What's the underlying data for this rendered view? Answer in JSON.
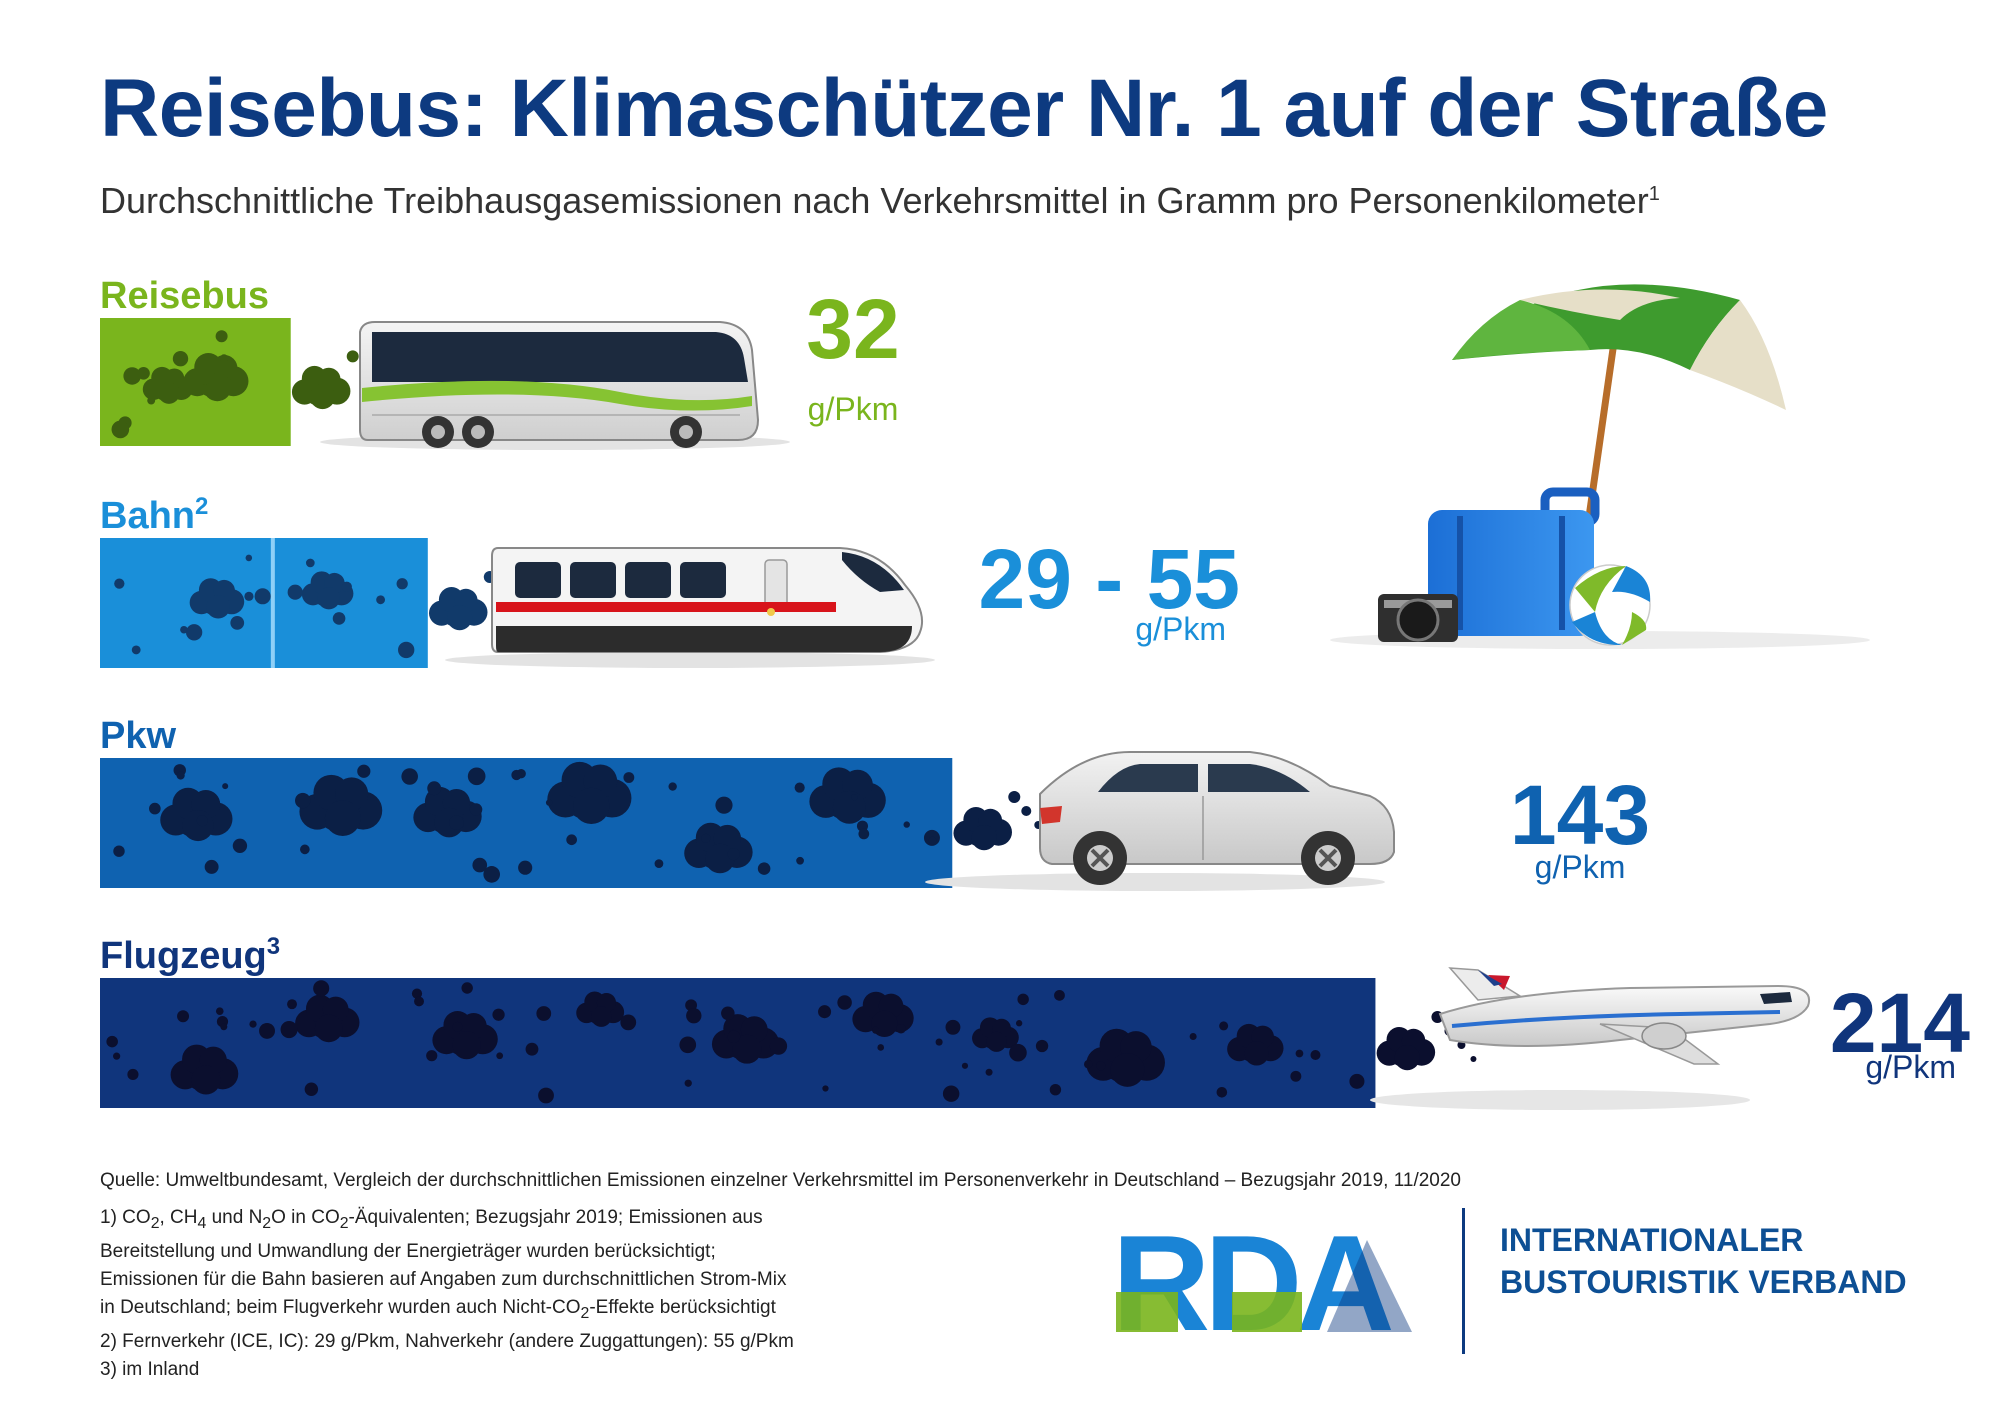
{
  "title": "Reisebus: Klimaschützer Nr. 1 auf der Straße",
  "subtitle": "Durchschnittliche Treibhausgasemissionen nach Verkehrsmittel in Gramm pro Personenkilometer",
  "subtitle_sup": "1",
  "chart_data": {
    "type": "bar",
    "orientation": "horizontal",
    "title": "Reisebus: Klimaschützer Nr. 1 auf der Straße",
    "subtitle": "Durchschnittliche Treibhausgasemissionen nach Verkehrsmittel in Gramm pro Personenkilometer",
    "unit": "g/Pkm",
    "categories": [
      "Reisebus",
      "Bahn",
      "Pkw",
      "Flugzeug"
    ],
    "category_footnotes": [
      "",
      "2",
      "",
      "3"
    ],
    "values": [
      32,
      [
        29,
        55
      ],
      143,
      214
    ],
    "value_labels": [
      "32",
      "29 - 55",
      "143",
      "214"
    ],
    "colors": [
      "#7ab51d",
      "#1a8fd9",
      "#0f62b0",
      "#10357c"
    ],
    "icons": [
      "coach-bus-icon",
      "high-speed-train-icon",
      "car-icon",
      "airplane-icon"
    ]
  },
  "source": "Quelle: Umweltbundesamt, Vergleich der durchschnittlichen Emissionen einzelner Verkehrsmittel im Personenverkehr in Deutschland – Bezugsjahr 2019, 11/2020",
  "notes": {
    "n1_a": "1) CO",
    "n1_a_sub": "2",
    "n1_b": ", CH",
    "n1_b_sub": "4",
    "n1_c": " und N",
    "n1_c_sub": "2",
    "n1_d": "O in CO",
    "n1_d_sub": "2",
    "n1_e": "-Äquivalenten; Bezugsjahr 2019; Emissionen aus",
    "line2": "Bereitstellung und Umwandlung der Energieträger wurden berücksichtigt;",
    "line3": "Emissionen für die Bahn basieren auf Angaben zum durchschnittlichen Strom-Mix",
    "line4_a": "in Deutschland; beim Flugverkehr wurden auch Nicht-CO",
    "line4_sub": "2",
    "line4_b": "-Effekte berücksichtigt",
    "line5": "2) Fernverkehr (ICE, IC): 29 g/Pkm, Nahverkehr (andere Zuggattungen): 55 g/Pkm",
    "line6": "3) im Inland"
  },
  "logo": {
    "text": "RDA",
    "org_line1": "INTERNATIONALER",
    "org_line2": "BUSTOURISTIK VERBAND"
  },
  "illustration": [
    "beach-umbrella-icon",
    "suitcase-icon",
    "camera-icon",
    "beach-ball-icon"
  ]
}
